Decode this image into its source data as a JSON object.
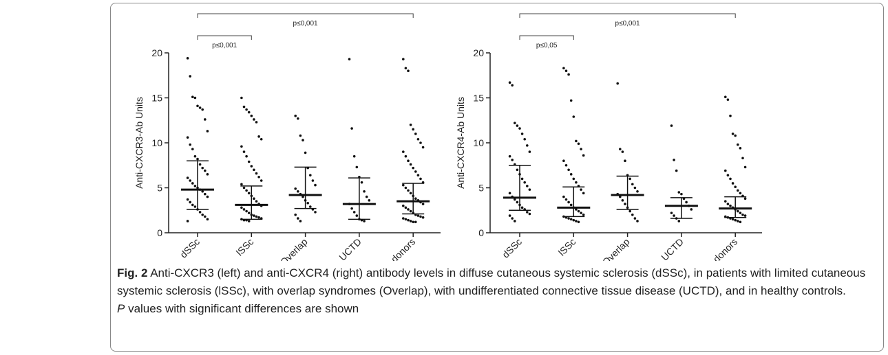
{
  "chart_data": [
    {
      "type": "scatter",
      "y_label": "Anti-CXCR3-Ab Units",
      "categories": [
        "dSSc",
        "lSSc",
        "Overlap",
        "UCTD",
        "Healthy donors"
      ],
      "points": [
        [
          19.4,
          17.4,
          15.1,
          15.0,
          14.1,
          13.9,
          13.7,
          12.6,
          11.3,
          10.6,
          9.8,
          9.3,
          8.5,
          8.2,
          7.6,
          7.2,
          6.9,
          6.5,
          6.1,
          5.8,
          5.5,
          5.2,
          5.0,
          4.8,
          4.6,
          4.3,
          4.0,
          3.7,
          3.4,
          3.1,
          2.9,
          2.6,
          2.3,
          2.0,
          1.8,
          1.5,
          1.3
        ],
        [
          15.0,
          14.0,
          13.7,
          13.4,
          13.0,
          12.6,
          12.3,
          10.7,
          10.4,
          9.6,
          9.0,
          8.5,
          7.9,
          7.4,
          7.0,
          6.6,
          6.2,
          5.8,
          5.4,
          5.0,
          4.7,
          4.4,
          4.1,
          3.8,
          3.5,
          3.2,
          3.0,
          2.8,
          2.6,
          2.4,
          2.2,
          2.0,
          1.9,
          1.8,
          1.7,
          1.6,
          1.5,
          1.4,
          1.4,
          1.3
        ],
        [
          13.0,
          12.7,
          10.8,
          10.3,
          8.9,
          7.2,
          6.4,
          5.8,
          5.3,
          4.9,
          4.6,
          4.3,
          4.0,
          3.6,
          3.3,
          2.9,
          2.6,
          2.3,
          2.0,
          1.6,
          1.3
        ],
        [
          19.3,
          11.6,
          8.5,
          7.3,
          6.2,
          5.6,
          4.6,
          4.0,
          3.6,
          3.2,
          2.7,
          2.3,
          1.9,
          1.5,
          1.4,
          1.3
        ],
        [
          19.3,
          18.3,
          18.0,
          12.0,
          11.5,
          11.0,
          10.4,
          10.0,
          9.5,
          9.0,
          8.5,
          8.0,
          7.6,
          7.2,
          6.8,
          6.4,
          6.0,
          5.6,
          5.3,
          5.0,
          4.7,
          4.4,
          4.1,
          3.8,
          3.6,
          3.4,
          3.2,
          3.0,
          2.8,
          2.6,
          2.4,
          2.2,
          2.0,
          1.9,
          1.8,
          1.7,
          1.6,
          1.5,
          1.4,
          1.3,
          1.2,
          1.2
        ]
      ],
      "medians": [
        4.8,
        3.1,
        4.2,
        3.2,
        3.5
      ],
      "q1": [
        2.6,
        1.5,
        2.7,
        1.5,
        2.1
      ],
      "q3": [
        8.0,
        5.2,
        7.3,
        6.1,
        5.5
      ],
      "ylim": [
        0,
        20
      ],
      "yticks": [
        0,
        5,
        10,
        15,
        20
      ],
      "annotations": [
        {
          "text": "p≤0,001",
          "from": 0,
          "to": 4
        },
        {
          "text": "p≤0,001",
          "from": 0,
          "to": 1
        }
      ],
      "color": "#111111"
    },
    {
      "type": "scatter",
      "y_label": "Anti-CXCR4-Ab Units",
      "categories": [
        "dSSc",
        "lSSc",
        "Overlap",
        "UCTD",
        "Healthy donors"
      ],
      "points": [
        [
          16.7,
          16.4,
          12.2,
          11.9,
          11.6,
          11.0,
          10.4,
          9.7,
          9.0,
          8.5,
          8.1,
          7.6,
          7.0,
          6.5,
          6.0,
          5.6,
          5.2,
          4.8,
          4.4,
          4.0,
          3.7,
          3.4,
          3.1,
          2.8,
          2.6,
          2.3,
          2.1,
          1.9,
          1.6,
          1.3
        ],
        [
          18.3,
          18.0,
          17.6,
          14.7,
          12.9,
          10.2,
          9.9,
          9.3,
          8.6,
          8.0,
          7.5,
          7.0,
          6.5,
          6.0,
          5.6,
          5.2,
          4.8,
          4.4,
          4.0,
          3.7,
          3.4,
          3.1,
          2.8,
          2.6,
          2.4,
          2.2,
          2.0,
          1.8,
          1.7,
          1.6,
          1.5,
          1.4,
          1.3,
          1.2
        ],
        [
          16.6,
          9.3,
          9.0,
          8.0,
          6.4,
          6.0,
          5.4,
          5.0,
          4.6,
          4.3,
          4.0,
          3.6,
          3.2,
          2.8,
          2.4,
          2.0,
          1.6,
          1.3
        ],
        [
          11.9,
          8.1,
          6.9,
          4.5,
          4.3,
          3.8,
          3.4,
          3.0,
          2.6,
          2.2,
          1.9,
          1.6,
          1.3
        ],
        [
          15.1,
          14.8,
          13.0,
          11.0,
          10.8,
          9.8,
          9.4,
          8.3,
          7.3,
          6.9,
          6.4,
          6.0,
          5.5,
          5.1,
          4.7,
          4.4,
          4.1,
          3.8,
          3.5,
          3.2,
          3.0,
          2.8,
          2.6,
          2.4,
          2.2,
          2.0,
          1.9,
          1.8,
          1.7,
          1.6,
          1.5,
          1.4,
          1.3,
          1.2
        ]
      ],
      "medians": [
        3.9,
        2.8,
        4.2,
        3.0,
        2.7
      ],
      "q1": [
        2.5,
        1.8,
        2.6,
        1.6,
        1.7
      ],
      "q3": [
        7.5,
        5.1,
        6.3,
        3.9,
        4.0
      ],
      "ylim": [
        0,
        20
      ],
      "yticks": [
        0,
        5,
        10,
        15,
        20
      ],
      "annotations": [
        {
          "text": "p≤0,001",
          "from": 0,
          "to": 4
        },
        {
          "text": "p≤0,05",
          "from": 0,
          "to": 1
        }
      ],
      "color": "#111111"
    }
  ],
  "caption": {
    "label": "Fig. 2",
    "text": "Anti-CXCR3 (left) and anti-CXCR4 (right) antibody levels in diffuse cutaneous systemic sclerosis (dSSc), in patients with limited cutaneous systemic sclerosis (lSSc), with overlap syndromes (Overlap), with undifferentiated connective tissue disease (UCTD), and in healthy controls.",
    "note_italic": "P",
    "note": "values with significant differences are shown"
  }
}
